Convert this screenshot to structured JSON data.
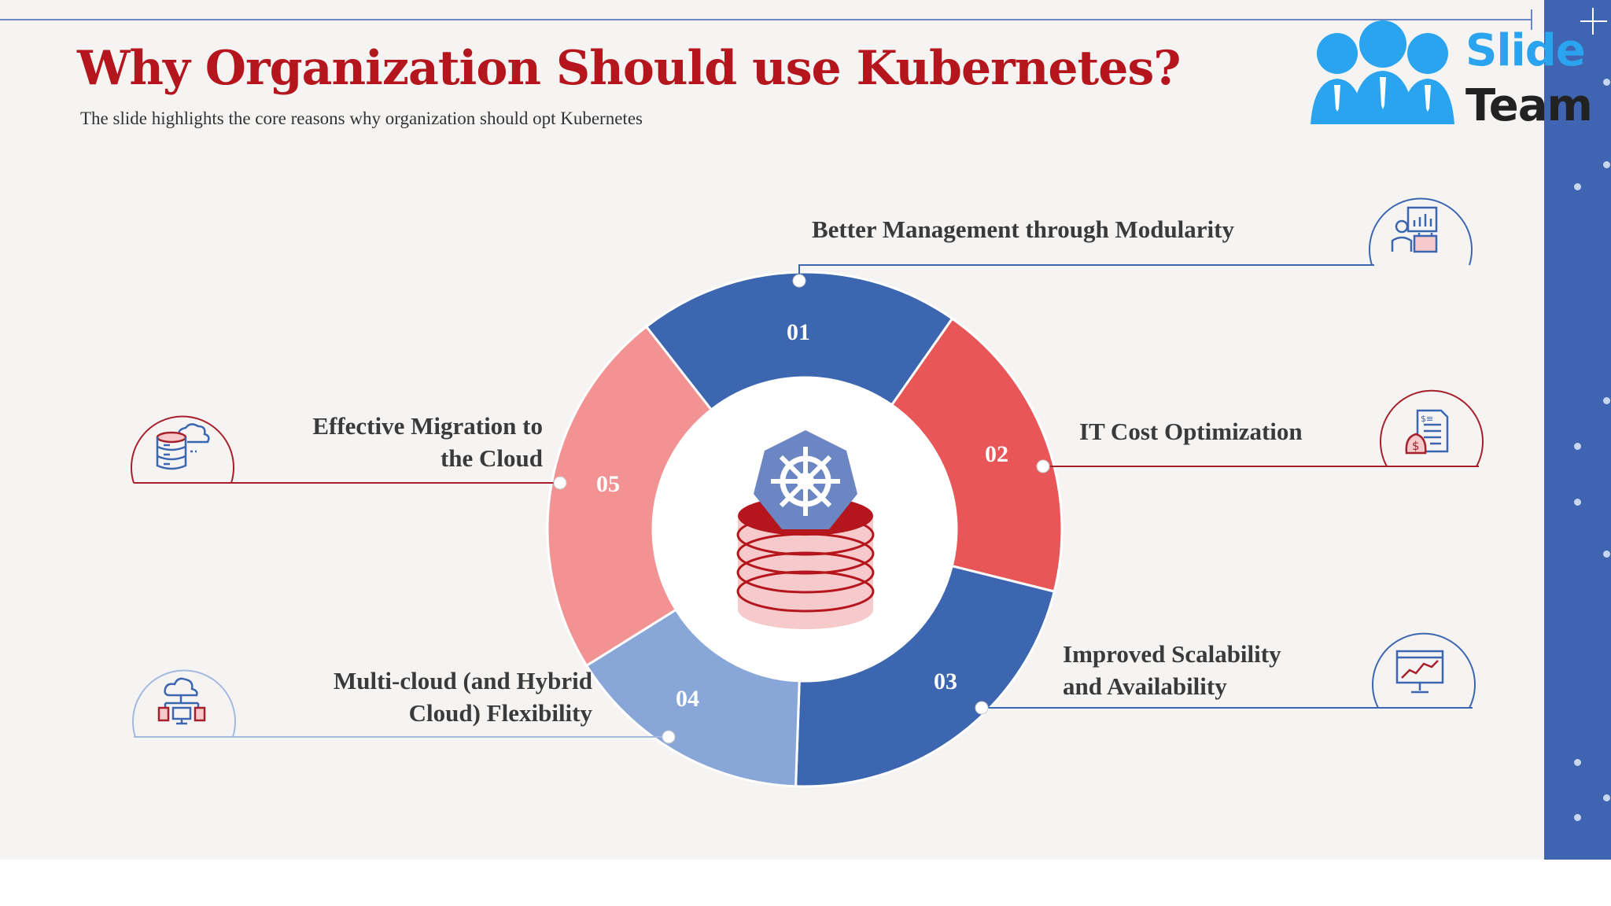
{
  "slide": {
    "title": "Why Organization Should use Kubernetes?",
    "subtitle": "The slide highlights the core reasons why organization should opt Kubernetes"
  },
  "logo": {
    "line1": "Slide",
    "line2": "Team"
  },
  "center_icon": "kubernetes-database-icon",
  "reasons": [
    {
      "number": "01",
      "lines": [
        "Better Management through Modularity"
      ],
      "icon": "management-dashboard-icon",
      "color": "#3d66b1"
    },
    {
      "number": "02",
      "lines": [
        "IT Cost Optimization"
      ],
      "icon": "cost-document-icon",
      "color": "#e85658"
    },
    {
      "number": "03",
      "lines": [
        "Improved Scalability",
        "and Availability"
      ],
      "icon": "monitor-chart-icon",
      "color": "#3d66b1"
    },
    {
      "number": "04",
      "lines": [
        "Multi-cloud (and Hybrid",
        "Cloud) Flexibility"
      ],
      "icon": "cloud-network-icon",
      "color": "#88a7d8"
    },
    {
      "number": "05",
      "lines": [
        "Effective Migration to",
        "the Cloud"
      ],
      "icon": "cloud-server-icon",
      "color": "#f39293"
    }
  ]
}
